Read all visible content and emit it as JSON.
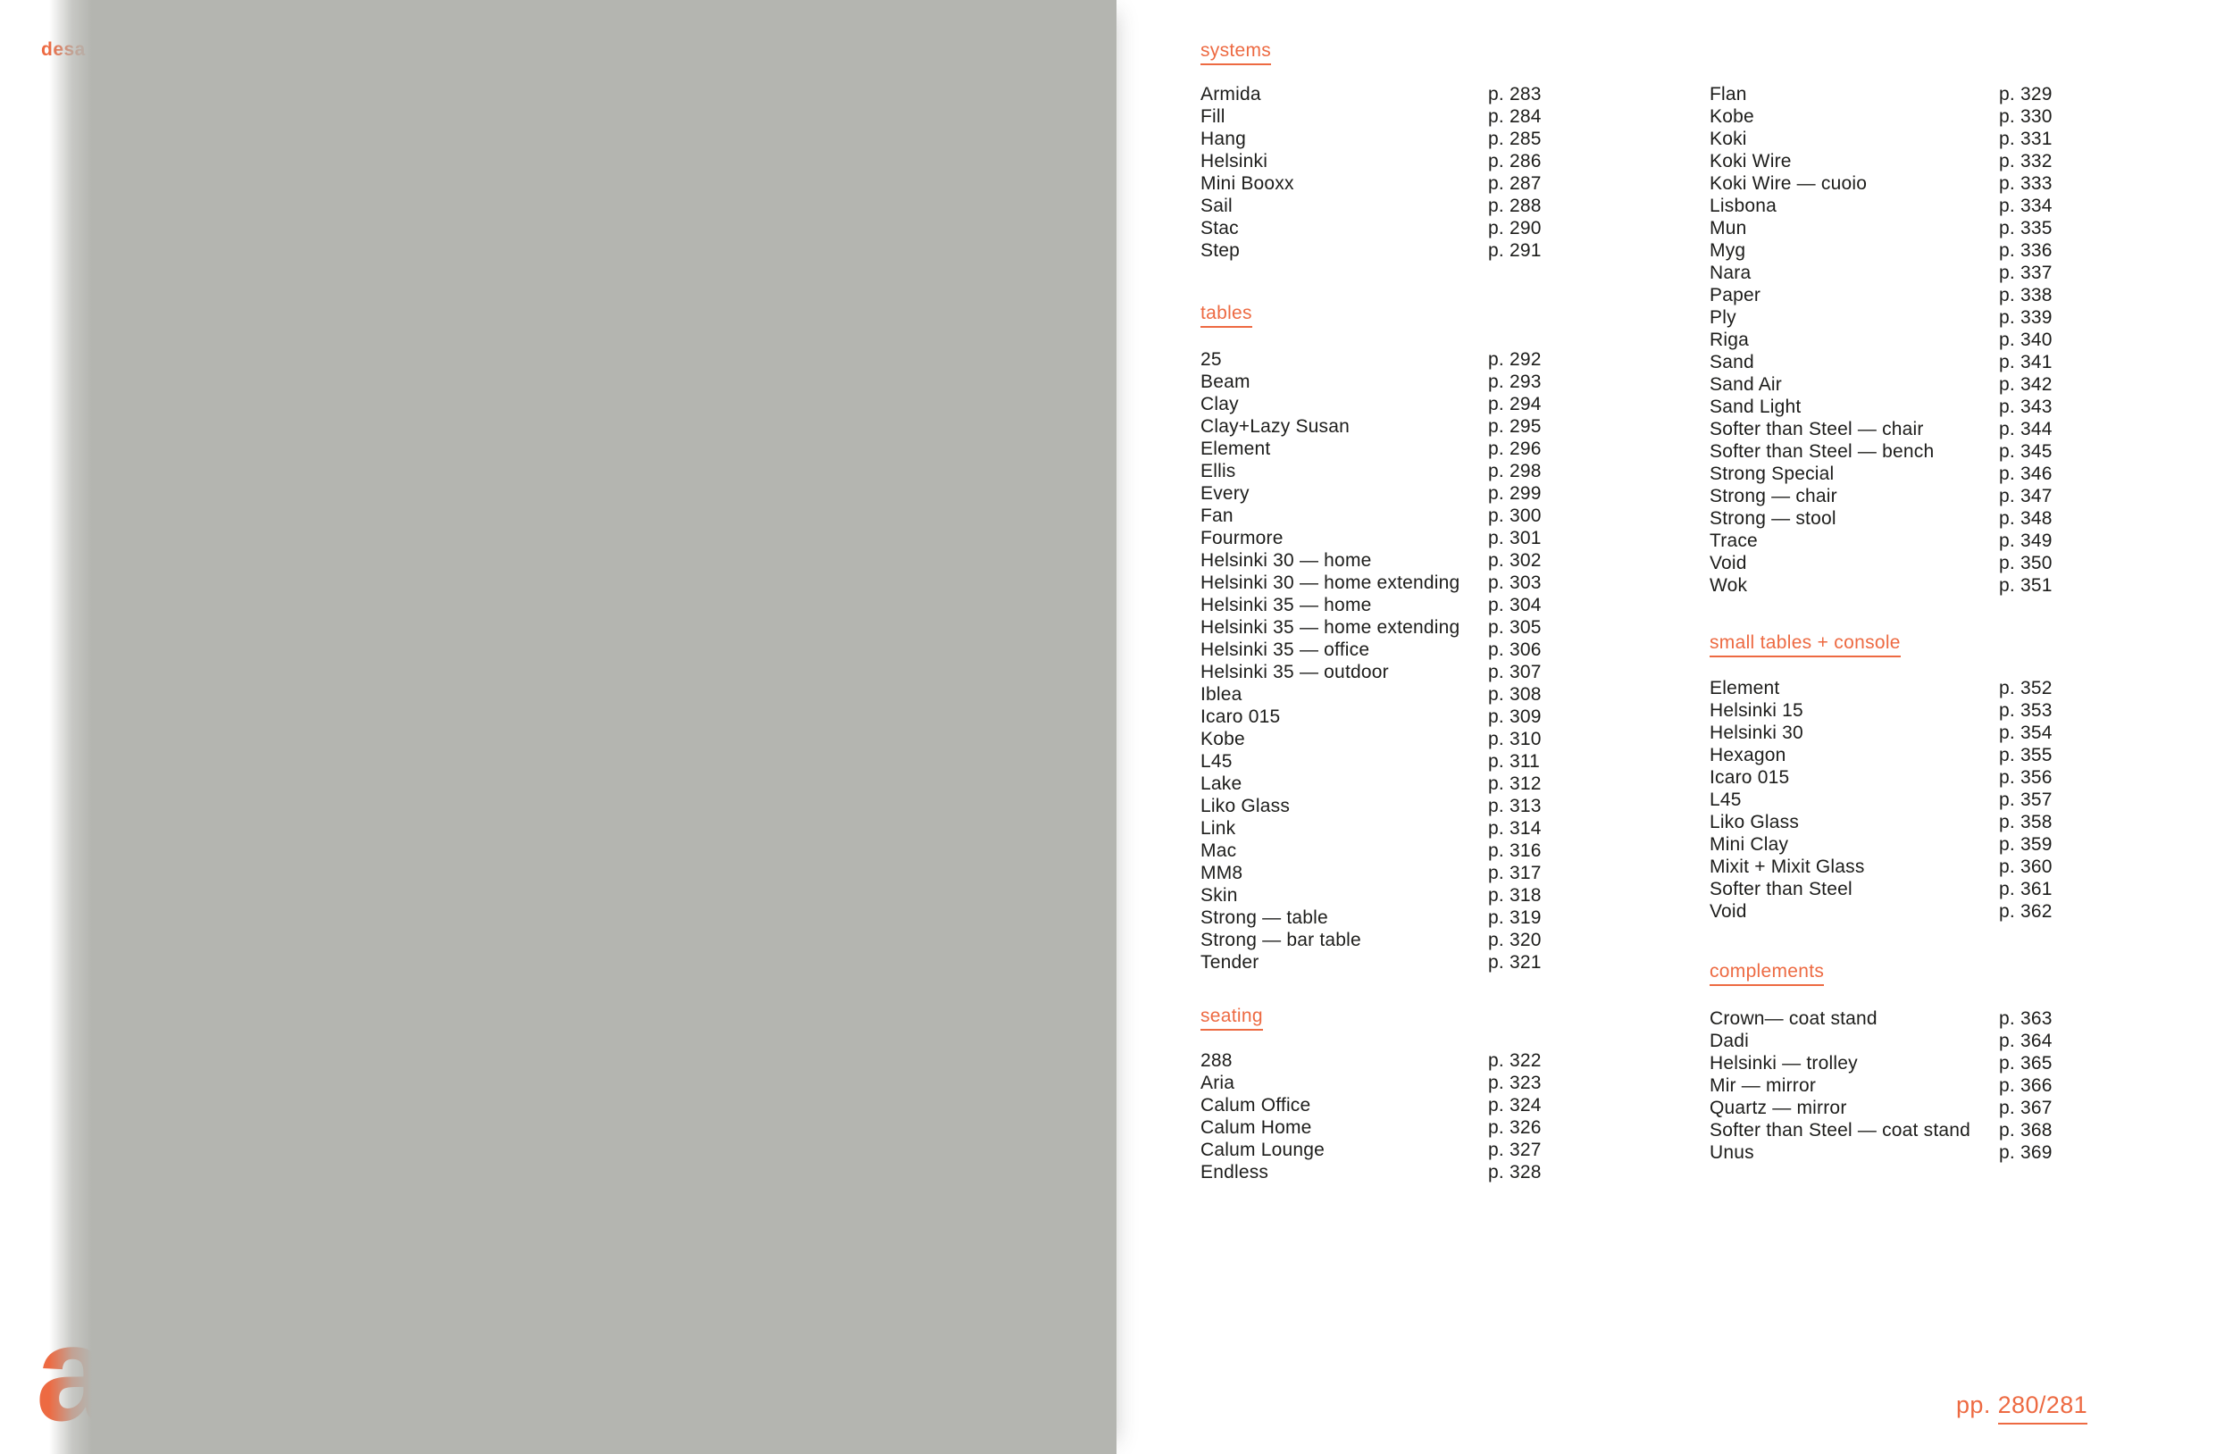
{
  "brand": {
    "wordmark_partial": "desa",
    "letter": "a"
  },
  "colors": {
    "accent_orange": "#ED6A42",
    "panel_gray": "#B4B5B0",
    "text_black": "#1D1D1B"
  },
  "footer": {
    "prefix": "pp.",
    "page_numbers": "280/281"
  },
  "index": {
    "left_column": {
      "systems": {
        "heading": "systems",
        "items": [
          {
            "name": "Armida",
            "page": "p. 283"
          },
          {
            "name": "Fill",
            "page": "p. 284"
          },
          {
            "name": "Hang",
            "page": "p. 285"
          },
          {
            "name": "Helsinki",
            "page": "p. 286"
          },
          {
            "name": "Mini Booxx",
            "page": "p. 287"
          },
          {
            "name": "Sail",
            "page": "p. 288"
          },
          {
            "name": "Stac",
            "page": "p. 290"
          },
          {
            "name": "Step",
            "page": "p. 291"
          }
        ]
      },
      "tables": {
        "heading": "tables",
        "items": [
          {
            "name": "25",
            "page": "p. 292"
          },
          {
            "name": "Beam",
            "page": "p. 293"
          },
          {
            "name": "Clay",
            "page": "p. 294"
          },
          {
            "name": "Clay+Lazy Susan",
            "page": "p. 295"
          },
          {
            "name": "Element",
            "page": "p. 296"
          },
          {
            "name": "Ellis",
            "page": "p. 298"
          },
          {
            "name": "Every",
            "page": "p. 299"
          },
          {
            "name": "Fan",
            "page": "p. 300"
          },
          {
            "name": "Fourmore",
            "page": "p. 301"
          },
          {
            "name": "Helsinki 30 — home",
            "page": "p. 302"
          },
          {
            "name": "Helsinki 30 — home extending",
            "page": "p. 303"
          },
          {
            "name": "Helsinki 35 — home",
            "page": "p. 304"
          },
          {
            "name": "Helsinki 35 — home extending",
            "page": "p. 305"
          },
          {
            "name": "Helsinki 35 — office",
            "page": "p. 306"
          },
          {
            "name": "Helsinki 35 — outdoor",
            "page": "p. 307"
          },
          {
            "name": "Iblea",
            "page": "p. 308"
          },
          {
            "name": "Icaro 015",
            "page": "p. 309"
          },
          {
            "name": "Kobe",
            "page": "p. 310"
          },
          {
            "name": "L45",
            "page": "p. 311"
          },
          {
            "name": "Lake",
            "page": "p. 312"
          },
          {
            "name": "Liko Glass",
            "page": "p. 313"
          },
          {
            "name": "Link",
            "page": "p. 314"
          },
          {
            "name": "Mac",
            "page": "p. 316"
          },
          {
            "name": "MM8",
            "page": "p. 317"
          },
          {
            "name": "Skin",
            "page": "p. 318"
          },
          {
            "name": "Strong — table",
            "page": "p. 319"
          },
          {
            "name": "Strong — bar table",
            "page": "p. 320"
          },
          {
            "name": "Tender",
            "page": "p. 321"
          }
        ]
      },
      "seating": {
        "heading": "seating",
        "items": [
          {
            "name": "288",
            "page": "p. 322"
          },
          {
            "name": "Aria",
            "page": "p. 323"
          },
          {
            "name": "Calum Office",
            "page": "p. 324"
          },
          {
            "name": "Calum Home",
            "page": "p. 326"
          },
          {
            "name": "Calum Lounge",
            "page": "p. 327"
          },
          {
            "name": "Endless",
            "page": "p. 328"
          }
        ]
      }
    },
    "right_column": {
      "seating_continued": {
        "items": [
          {
            "name": "Flan",
            "page": "p. 329"
          },
          {
            "name": "Kobe",
            "page": "p. 330"
          },
          {
            "name": "Koki",
            "page": "p. 331"
          },
          {
            "name": "Koki Wire",
            "page": "p. 332"
          },
          {
            "name": "Koki Wire — cuoio",
            "page": "p. 333"
          },
          {
            "name": "Lisbona",
            "page": "p. 334"
          },
          {
            "name": "Mun",
            "page": "p. 335"
          },
          {
            "name": "Myg",
            "page": "p. 336"
          },
          {
            "name": "Nara",
            "page": "p. 337"
          },
          {
            "name": "Paper",
            "page": "p. 338"
          },
          {
            "name": "Ply",
            "page": "p. 339"
          },
          {
            "name": "Riga",
            "page": "p. 340"
          },
          {
            "name": "Sand",
            "page": "p. 341"
          },
          {
            "name": "Sand Air",
            "page": "p. 342"
          },
          {
            "name": "Sand Light",
            "page": "p. 343"
          },
          {
            "name": "Softer than Steel — chair",
            "page": "p. 344"
          },
          {
            "name": "Softer than Steel — bench",
            "page": "p. 345"
          },
          {
            "name": "Strong Special",
            "page": "p. 346"
          },
          {
            "name": "Strong — chair",
            "page": "p. 347"
          },
          {
            "name": "Strong — stool",
            "page": "p. 348"
          },
          {
            "name": "Trace",
            "page": "p. 349"
          },
          {
            "name": "Void",
            "page": "p. 350"
          },
          {
            "name": "Wok",
            "page": "p. 351"
          }
        ]
      },
      "small_tables": {
        "heading": "small tables + console",
        "items": [
          {
            "name": "Element",
            "page": "p. 352"
          },
          {
            "name": "Helsinki 15",
            "page": "p. 353"
          },
          {
            "name": "Helsinki 30",
            "page": "p. 354"
          },
          {
            "name": "Hexagon",
            "page": "p. 355"
          },
          {
            "name": "Icaro 015",
            "page": "p. 356"
          },
          {
            "name": "L45",
            "page": "p. 357"
          },
          {
            "name": "Liko Glass",
            "page": "p. 358"
          },
          {
            "name": "Mini Clay",
            "page": "p. 359"
          },
          {
            "name": "Mixit + Mixit Glass",
            "page": "p. 360"
          },
          {
            "name": "Softer than Steel",
            "page": "p. 361"
          },
          {
            "name": "Void",
            "page": "p. 362"
          }
        ]
      },
      "complements": {
        "heading": "complements",
        "items": [
          {
            "name": "Crown— coat stand",
            "page": "p. 363"
          },
          {
            "name": "Dadi",
            "page": "p. 364"
          },
          {
            "name": "Helsinki — trolley",
            "page": "p. 365"
          },
          {
            "name": "Mir — mirror",
            "page": "p. 366"
          },
          {
            "name": "Quartz — mirror",
            "page": "p. 367"
          },
          {
            "name": "Softer than Steel — coat stand",
            "page": "p. 368"
          },
          {
            "name": "Unus",
            "page": "p. 369"
          }
        ]
      }
    }
  }
}
